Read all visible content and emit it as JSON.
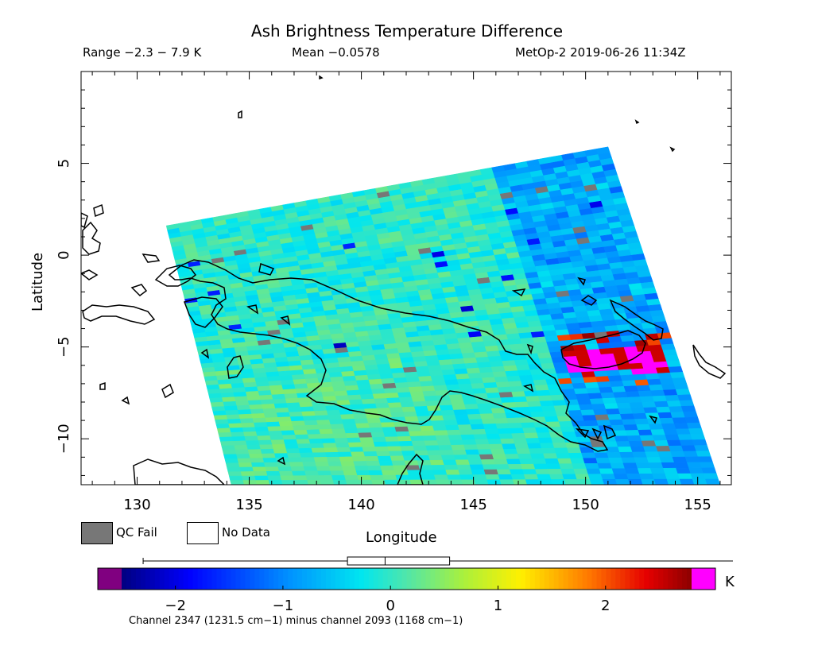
{
  "header": {
    "title": "Ash Brightness Temperature Difference",
    "range": "Range −2.3 − 7.9 K",
    "mean": "Mean −0.0578",
    "satellite_time": "MetOp-2 2019-06-26 11:34Z"
  },
  "map": {
    "xlabel": "Longitude",
    "ylabel": "Latitude",
    "lon_range": [
      127.5,
      156.5
    ],
    "lat_range": [
      -12.5,
      10
    ],
    "xticks": [
      130,
      135,
      140,
      145,
      150,
      155
    ],
    "yticks": [
      5,
      0,
      -5,
      -10
    ],
    "ytick_labels": [
      "5",
      "0",
      "−5",
      "−10"
    ],
    "swath_corners_lonlat": [
      [
        131.3,
        1.6
      ],
      [
        151.0,
        5.9
      ],
      [
        156.0,
        -12.5
      ],
      [
        134.2,
        -12.5
      ]
    ],
    "ash_anomaly_region": "approx. 149–153.5 E, 5–7 S (magenta / red)"
  },
  "legend": {
    "qc_fail": "QC Fail",
    "no_data": "No Data",
    "qc_color": "#777777"
  },
  "colorbar": {
    "unit": "K",
    "ticks": [
      "−2",
      "−1",
      "0",
      "1",
      "2"
    ],
    "tick_values": [
      -2,
      -1,
      0,
      1,
      2
    ],
    "range": [
      -2.5,
      2.8
    ],
    "under_color": "#800080",
    "over_color": "#ff00ff",
    "caption": "Channel 2347 (1231.5 cm−1) minus channel 2093 (1168 cm−1)",
    "box_plot": {
      "whisker_low": -2.3,
      "q1": -0.4,
      "median": -0.05,
      "q3": 0.55,
      "whisker_high": 7.9
    }
  }
}
